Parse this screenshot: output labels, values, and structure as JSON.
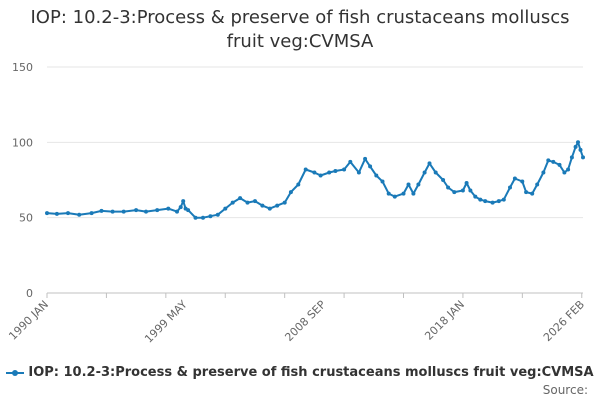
{
  "chart_data": {
    "type": "line",
    "title": "IOP: 10.2-3:Process & preserve of fish crustaceans molluscs fruit veg:CVMSA",
    "xlabel": "",
    "ylabel": "",
    "ylim": [
      0,
      150
    ],
    "yticks": [
      0,
      50,
      100,
      150
    ],
    "xlim": [
      "1990-01",
      "2026-02"
    ],
    "xticks": [
      "1990 JAN",
      "1999 MAY",
      "2008 SEP",
      "2018 JAN",
      "2026 FEB"
    ],
    "grid": true,
    "legend_position": "bottom",
    "series": [
      {
        "name": "IOP: 10.2-3:Process & preserve of fish crustaceans molluscs fruit veg:CVMSA",
        "color": "#1a7ab8",
        "points": [
          [
            "1990-01",
            53
          ],
          [
            "1990-09",
            52.5
          ],
          [
            "1991-06",
            53
          ],
          [
            "1992-03",
            52
          ],
          [
            "1993-01",
            53
          ],
          [
            "1993-09",
            54.5
          ],
          [
            "1994-06",
            54
          ],
          [
            "1995-03",
            54
          ],
          [
            "1996-01",
            55
          ],
          [
            "1996-09",
            54
          ],
          [
            "1997-06",
            55
          ],
          [
            "1998-03",
            56
          ],
          [
            "1998-10",
            54
          ],
          [
            "1999-01",
            57
          ],
          [
            "1999-03",
            61
          ],
          [
            "1999-05",
            56
          ],
          [
            "1999-07",
            55
          ],
          [
            "2000-01",
            50
          ],
          [
            "2000-07",
            50
          ],
          [
            "2001-01",
            51
          ],
          [
            "2001-07",
            52
          ],
          [
            "2002-01",
            56
          ],
          [
            "2002-07",
            60
          ],
          [
            "2003-01",
            63
          ],
          [
            "2003-07",
            60
          ],
          [
            "2004-01",
            61
          ],
          [
            "2004-07",
            58
          ],
          [
            "2005-01",
            56
          ],
          [
            "2005-07",
            58
          ],
          [
            "2006-01",
            60
          ],
          [
            "2006-06",
            67
          ],
          [
            "2006-12",
            72
          ],
          [
            "2007-06",
            82
          ],
          [
            "2008-01",
            80
          ],
          [
            "2008-06",
            78
          ],
          [
            "2009-01",
            80
          ],
          [
            "2009-06",
            81
          ],
          [
            "2010-01",
            82
          ],
          [
            "2010-06",
            87
          ],
          [
            "2011-01",
            80
          ],
          [
            "2011-06",
            89
          ],
          [
            "2011-10",
            84
          ],
          [
            "2012-03",
            78
          ],
          [
            "2012-08",
            74
          ],
          [
            "2013-01",
            66
          ],
          [
            "2013-06",
            64
          ],
          [
            "2014-01",
            66
          ],
          [
            "2014-05",
            72
          ],
          [
            "2014-09",
            66
          ],
          [
            "2015-01",
            72
          ],
          [
            "2015-06",
            80
          ],
          [
            "2015-10",
            86
          ],
          [
            "2016-03",
            80
          ],
          [
            "2016-09",
            75
          ],
          [
            "2017-01",
            70
          ],
          [
            "2017-06",
            67
          ],
          [
            "2018-01",
            68
          ],
          [
            "2018-04",
            73
          ],
          [
            "2018-07",
            68
          ],
          [
            "2018-11",
            64
          ],
          [
            "2019-03",
            62
          ],
          [
            "2019-07",
            61
          ],
          [
            "2020-01",
            60
          ],
          [
            "2020-06",
            61
          ],
          [
            "2020-10",
            62
          ],
          [
            "2021-03",
            70
          ],
          [
            "2021-07",
            76
          ],
          [
            "2022-01",
            74
          ],
          [
            "2022-04",
            67
          ],
          [
            "2022-09",
            66
          ],
          [
            "2023-01",
            72
          ],
          [
            "2023-06",
            80
          ],
          [
            "2023-10",
            88
          ],
          [
            "2024-02",
            87
          ],
          [
            "2024-07",
            85
          ],
          [
            "2024-11",
            80
          ],
          [
            "2025-02",
            82
          ],
          [
            "2025-05",
            90
          ],
          [
            "2025-08",
            97
          ],
          [
            "2025-10",
            100
          ],
          [
            "2025-12",
            95
          ],
          [
            "2026-02",
            90
          ]
        ]
      }
    ]
  },
  "source_label": "Source:"
}
